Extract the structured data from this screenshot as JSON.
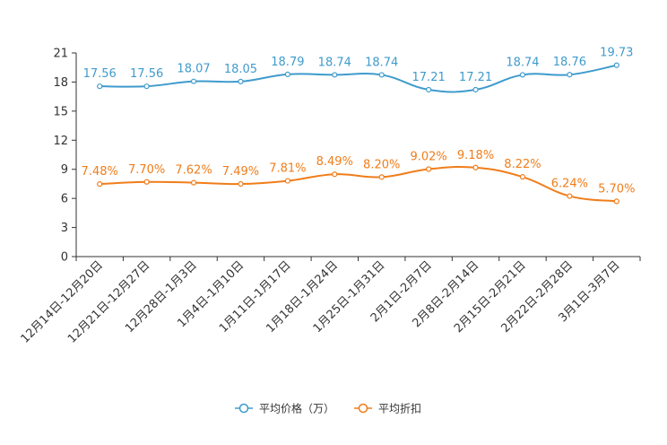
{
  "chart_data": {
    "type": "line",
    "title": "",
    "xlabel": "",
    "ylabel": "",
    "ylim": [
      0,
      21
    ],
    "yticks": [
      0,
      3,
      6,
      9,
      12,
      15,
      18,
      21
    ],
    "categories": [
      "12月14日-12月20日",
      "12月21日-12月27日",
      "12月28日-1月3日",
      "1月4日-1月10日",
      "1月11日-1月17日",
      "1月18日-1月24日",
      "1月25日-1月31日",
      "2月1日-2月7日",
      "2月8日-2月14日",
      "2月15日-2月21日",
      "2月22日-2月28日",
      "3月1日-3月7日"
    ],
    "series": [
      {
        "name": "平均价格（万）",
        "color": "#3f9bcd",
        "values": [
          17.56,
          17.56,
          18.07,
          18.05,
          18.79,
          18.74,
          18.74,
          17.21,
          17.21,
          18.74,
          18.76,
          19.73
        ],
        "labels": [
          "17.56",
          "17.56",
          "18.07",
          "18.05",
          "18.79",
          "18.74",
          "18.74",
          "17.21",
          "17.21",
          "18.74",
          "18.76",
          "19.73"
        ]
      },
      {
        "name": "平均折扣",
        "color": "#f07d1a",
        "values": [
          7.48,
          7.7,
          7.62,
          7.49,
          7.81,
          8.49,
          8.2,
          9.02,
          9.18,
          8.22,
          6.24,
          5.7
        ],
        "labels": [
          "7.48%",
          "7.70%",
          "7.62%",
          "7.49%",
          "7.81%",
          "8.49%",
          "8.20%",
          "9.02%",
          "9.18%",
          "8.22%",
          "6.24%",
          "5.70%"
        ]
      }
    ],
    "legend_position": "bottom-center",
    "grid": false
  }
}
